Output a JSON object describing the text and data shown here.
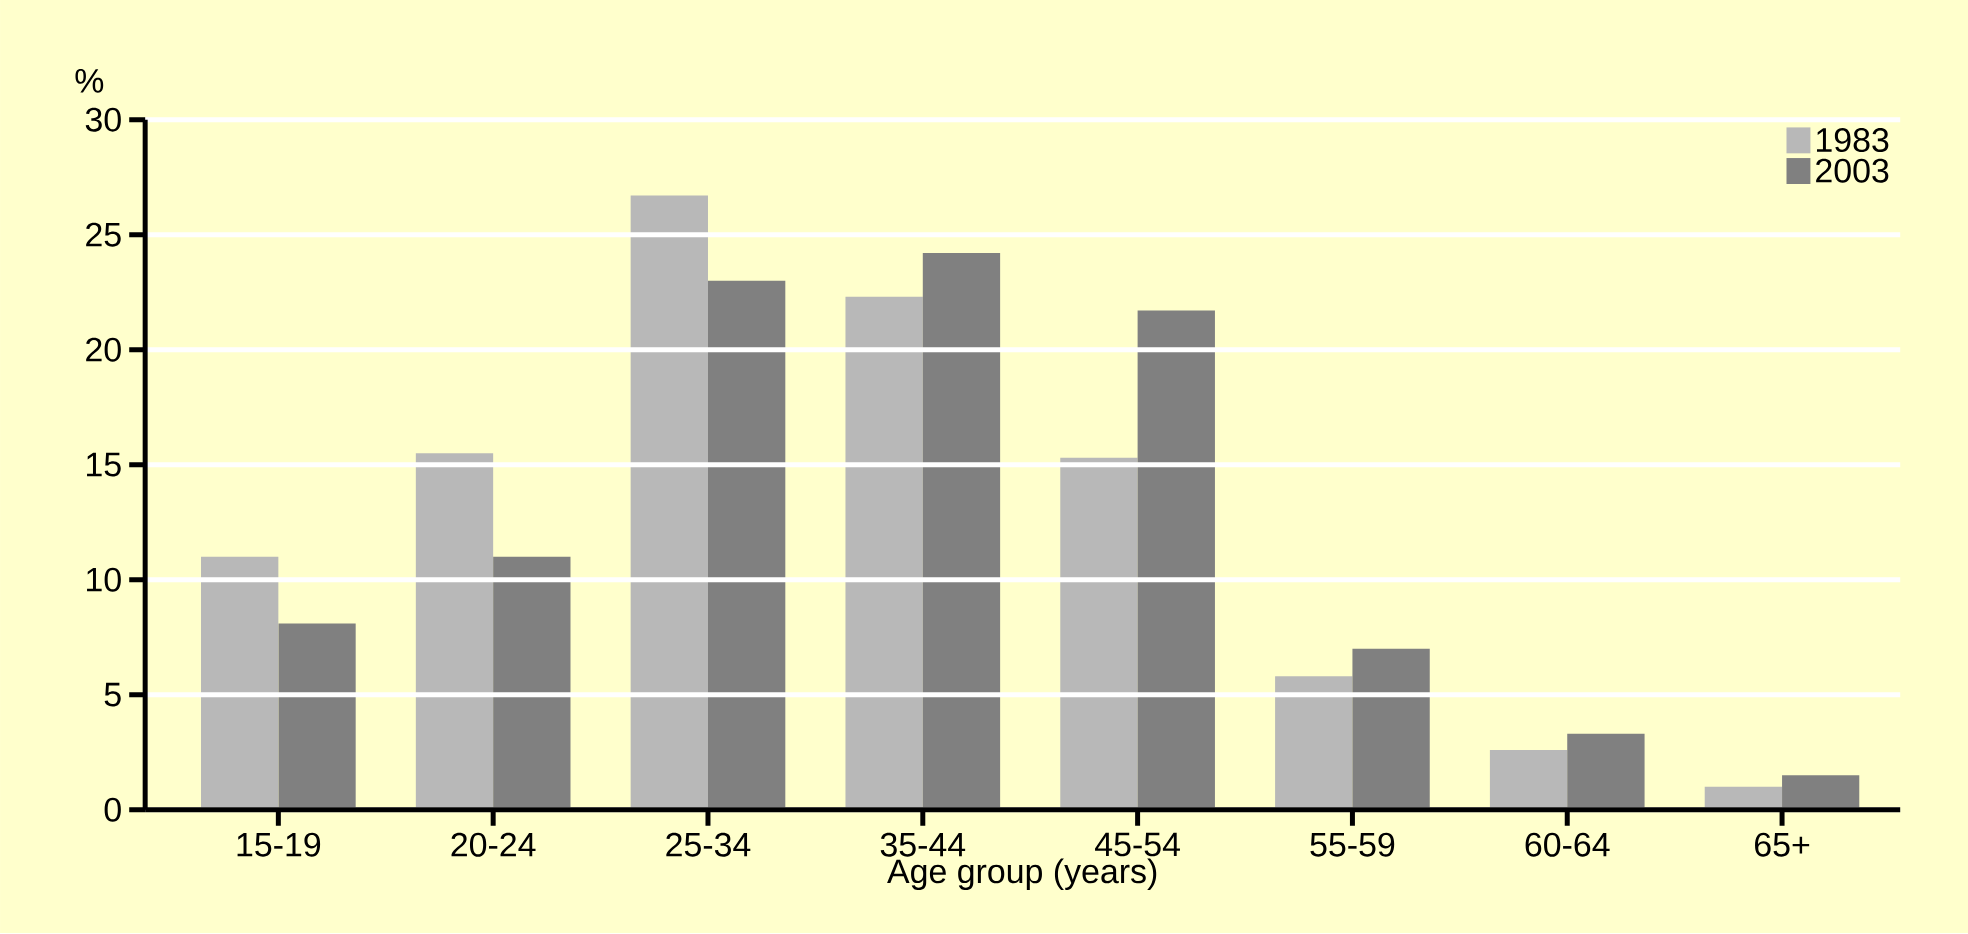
{
  "chart_data": {
    "type": "bar",
    "xlabel": "Age group (years)",
    "ylabel": "%",
    "categories": [
      "15-19",
      "20-24",
      "25-34",
      "35-44",
      "45-54",
      "55-59",
      "60-64",
      "65+"
    ],
    "series": [
      {
        "name": "1983",
        "color": "#b8b8b8",
        "values": [
          11.0,
          15.5,
          26.7,
          22.3,
          15.3,
          5.8,
          2.6,
          1.0
        ]
      },
      {
        "name": "2003",
        "color": "#808080",
        "values": [
          8.1,
          11.0,
          23.0,
          24.2,
          21.7,
          7.0,
          3.3,
          1.5
        ]
      }
    ],
    "ylim": [
      0,
      30
    ],
    "yticks": [
      0,
      5,
      10,
      15,
      20,
      25,
      30
    ],
    "grid": "y",
    "legend": "top right"
  }
}
